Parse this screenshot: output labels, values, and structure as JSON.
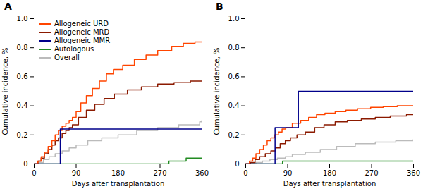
{
  "chart_data": [
    {
      "type": "step",
      "title": "A",
      "xlabel": "Days after transplantation",
      "ylabel": "Cumulative incidence, %",
      "xlim": [
        0,
        360
      ],
      "xticks": [
        0,
        90,
        180,
        270,
        360
      ],
      "ylim": [
        0,
        1.0
      ],
      "yticks": [
        0,
        0.2,
        0.4,
        0.6,
        0.8,
        {
          "value": 1.0,
          "label": "1.0"
        }
      ],
      "grid": false,
      "legend": "upper left",
      "series": [
        {
          "name": "Allogeneic URD",
          "color": "#FF4500",
          "x": [
            0,
            8,
            15,
            22,
            30,
            38,
            45,
            52,
            60,
            68,
            75,
            82,
            90,
            100,
            112,
            125,
            140,
            155,
            170,
            190,
            215,
            240,
            265,
            295,
            320,
            345,
            360
          ],
          "values": [
            0,
            0.02,
            0.05,
            0.08,
            0.12,
            0.16,
            0.2,
            0.23,
            0.26,
            0.28,
            0.3,
            0.32,
            0.36,
            0.42,
            0.47,
            0.52,
            0.57,
            0.62,
            0.65,
            0.68,
            0.72,
            0.75,
            0.78,
            0.81,
            0.83,
            0.84,
            0.84
          ]
        },
        {
          "name": "Allogeneic MRD",
          "color": "#8B1A00",
          "x": [
            0,
            8,
            15,
            22,
            30,
            38,
            45,
            52,
            60,
            68,
            75,
            82,
            95,
            112,
            130,
            150,
            172,
            200,
            230,
            265,
            300,
            335,
            360
          ],
          "values": [
            0,
            0.02,
            0.04,
            0.07,
            0.1,
            0.13,
            0.16,
            0.18,
            0.21,
            0.23,
            0.25,
            0.27,
            0.32,
            0.37,
            0.41,
            0.45,
            0.48,
            0.51,
            0.53,
            0.55,
            0.56,
            0.57,
            0.57
          ]
        },
        {
          "name": "Allogeneic MMR",
          "color": "#00008B",
          "x": [
            0,
            55,
            56,
            85,
            86,
            360
          ],
          "values": [
            0,
            0.0,
            0.24,
            0.24,
            0.24,
            0.24
          ]
        },
        {
          "name": "Autologous",
          "color": "#228B22",
          "x": [
            0,
            288,
            289,
            325,
            326,
            360
          ],
          "values": [
            0,
            0.0,
            0.02,
            0.02,
            0.04,
            0.04
          ]
        },
        {
          "name": "Overall",
          "color": "#BBBBBB",
          "x": [
            0,
            10,
            20,
            32,
            45,
            60,
            75,
            90,
            115,
            145,
            180,
            220,
            265,
            310,
            355,
            360
          ],
          "values": [
            0,
            0.01,
            0.03,
            0.05,
            0.07,
            0.09,
            0.11,
            0.13,
            0.16,
            0.18,
            0.2,
            0.23,
            0.25,
            0.27,
            0.29,
            0.3
          ]
        }
      ]
    },
    {
      "type": "step",
      "title": "B",
      "xlabel": "Days after transplantation",
      "ylabel": "Cumulative incidence, %",
      "xlim": [
        0,
        360
      ],
      "xticks": [
        0,
        90,
        180,
        270,
        360
      ],
      "ylim": [
        0,
        1.0
      ],
      "yticks": [
        0,
        0.2,
        0.4,
        0.6,
        0.8,
        {
          "value": 1.0,
          "label": "1.0"
        }
      ],
      "grid": false,
      "series": [
        {
          "name": "Allogeneic URD",
          "color": "#FF4500",
          "x": [
            0,
            8,
            15,
            22,
            30,
            38,
            46,
            54,
            62,
            70,
            78,
            86,
            100,
            118,
            135,
            152,
            170,
            192,
            215,
            240,
            268,
            295,
            325,
            355,
            360
          ],
          "values": [
            0,
            0.02,
            0.04,
            0.07,
            0.1,
            0.13,
            0.16,
            0.18,
            0.2,
            0.22,
            0.24,
            0.25,
            0.28,
            0.3,
            0.32,
            0.34,
            0.35,
            0.36,
            0.37,
            0.38,
            0.39,
            0.395,
            0.4,
            0.4,
            0.4
          ]
        },
        {
          "name": "Allogeneic MRD",
          "color": "#8B1A00",
          "x": [
            0,
            10,
            20,
            30,
            42,
            54,
            64,
            74,
            85,
            96,
            110,
            128,
            148,
            168,
            192,
            218,
            248,
            278,
            310,
            345,
            360
          ],
          "values": [
            0,
            0.01,
            0.03,
            0.05,
            0.07,
            0.09,
            0.11,
            0.14,
            0.16,
            0.18,
            0.2,
            0.22,
            0.25,
            0.27,
            0.29,
            0.3,
            0.31,
            0.32,
            0.33,
            0.34,
            0.34
          ]
        },
        {
          "name": "Allogeneic MMR",
          "color": "#00008B",
          "x": [
            0,
            62,
            63,
            112,
            113,
            360
          ],
          "values": [
            0,
            0.0,
            0.25,
            0.25,
            0.5,
            0.5
          ]
        },
        {
          "name": "Autologous",
          "color": "#228B22",
          "x": [
            0,
            78,
            79,
            360
          ],
          "values": [
            0,
            0.0,
            0.02,
            0.02
          ]
        },
        {
          "name": "Overall",
          "color": "#BBBBBB",
          "x": [
            0,
            10,
            22,
            36,
            52,
            68,
            85,
            100,
            128,
            160,
            195,
            235,
            278,
            322,
            360
          ],
          "values": [
            0,
            0.005,
            0.01,
            0.02,
            0.03,
            0.04,
            0.05,
            0.065,
            0.08,
            0.1,
            0.12,
            0.14,
            0.15,
            0.16,
            0.17
          ]
        }
      ]
    }
  ]
}
